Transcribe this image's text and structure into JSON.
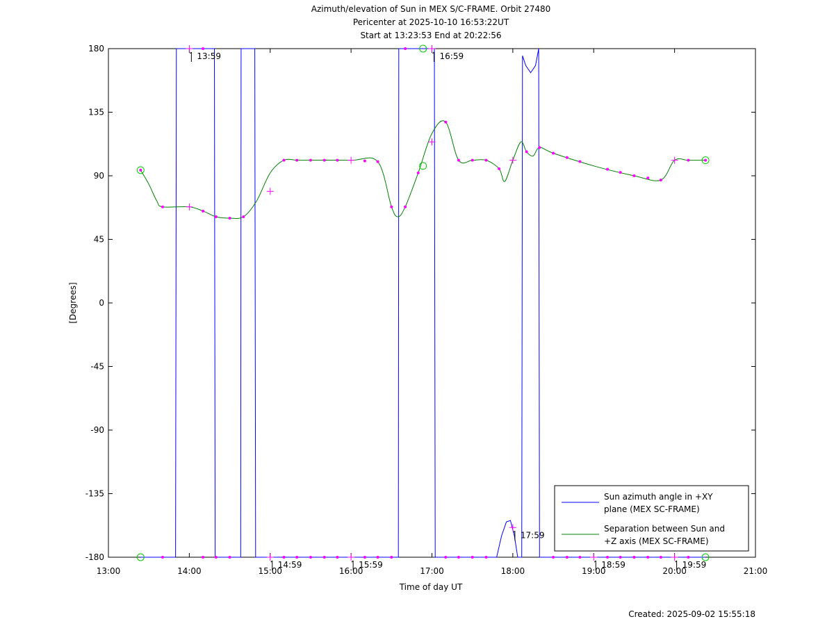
{
  "chart_data": {
    "type": "line",
    "title": [
      "Azimuth/elevation of Sun in MEX S/C-FRAME.  Orbit 27480",
      "Pericenter at 2025-10-10 16:53:22UT",
      "Start at 13:23:53 End at 20:22:56"
    ],
    "xlabel": "Time of day UT",
    "ylabel": "[Degrees]",
    "xlim": [
      13.0,
      21.0
    ],
    "ylim": [
      -180,
      180
    ],
    "x_ticks": [
      {
        "v": 13,
        "label": "13:00"
      },
      {
        "v": 14,
        "label": "14:00"
      },
      {
        "v": 15,
        "label": "15:00"
      },
      {
        "v": 16,
        "label": "16:00"
      },
      {
        "v": 17,
        "label": "17:00"
      },
      {
        "v": 18,
        "label": "18:00"
      },
      {
        "v": 19,
        "label": "19:00"
      },
      {
        "v": 20,
        "label": "20:00"
      },
      {
        "v": 21,
        "label": "21:00"
      }
    ],
    "y_ticks": [
      {
        "v": 180,
        "label": "180"
      },
      {
        "v": 135,
        "label": "135"
      },
      {
        "v": 90,
        "label": "90"
      },
      {
        "v": 45,
        "label": "45"
      },
      {
        "v": 0,
        "label": "0"
      },
      {
        "v": -45,
        "label": "-45"
      },
      {
        "v": -90,
        "label": "-90"
      },
      {
        "v": -135,
        "label": "-135"
      },
      {
        "v": -180,
        "label": "-180"
      }
    ],
    "legend_position": "bottom-right",
    "series": [
      {
        "name": "Sun azimuth angle in +XY plane (MEX SC-FRAME)",
        "legend_lines": [
          "Sun azimuth angle in +XY",
          "plane (MEX SC-FRAME)"
        ],
        "color": "#0000ff",
        "x": [
          13.398,
          13.83,
          13.84,
          14.31,
          14.32,
          14.635,
          14.64,
          14.81,
          14.82,
          16.585,
          16.59,
          17.03,
          17.04,
          17.8,
          17.86,
          17.92,
          17.97,
          18.02,
          18.06,
          18.11,
          18.12,
          18.16,
          18.22,
          18.28,
          18.32,
          18.33,
          20.382
        ],
        "y": [
          -180,
          -180,
          180,
          180,
          -180,
          -180,
          180,
          180,
          -180,
          -180,
          180,
          180,
          -180,
          -180,
          -165,
          -155,
          -154,
          -165,
          -180,
          -180,
          175,
          168,
          163,
          168,
          180,
          -180,
          -180
        ]
      },
      {
        "name": "Separation between Sun and +Z axis (MEX SC-FRAME)",
        "legend_lines": [
          "Separation between Sun and",
          "+Z axis (MEX SC-FRAME)"
        ],
        "color": "#008000",
        "x": [
          13.398,
          13.5,
          13.6,
          13.67,
          14.0,
          14.17,
          14.33,
          14.5,
          14.67,
          14.83,
          15.0,
          15.17,
          15.33,
          15.5,
          16.0,
          16.33,
          16.5,
          16.58,
          16.67,
          16.83,
          17.0,
          17.17,
          17.33,
          17.5,
          17.67,
          17.83,
          17.9,
          18.0,
          18.1,
          18.17,
          18.25,
          18.33,
          18.5,
          19.0,
          19.5,
          19.83,
          20.0,
          20.17,
          20.382
        ],
        "y": [
          94,
          84,
          72,
          68,
          68,
          65,
          61,
          60,
          61,
          72,
          92,
          101,
          101,
          101,
          101,
          100,
          68,
          61,
          68,
          92,
          120,
          128,
          101,
          101,
          101,
          95,
          86,
          101,
          114,
          107,
          104,
          110,
          106,
          97,
          90,
          87,
          101,
          101,
          101
        ]
      }
    ],
    "markers": {
      "color": "#ff00ff",
      "azimuth_dots_x": [
        13.67,
        14.17,
        14.33,
        14.5,
        15.17,
        15.33,
        15.5,
        15.67,
        15.83,
        16.17,
        16.33,
        16.5,
        17.17,
        17.33,
        17.5,
        17.67,
        18.5,
        18.67,
        18.83,
        19.17,
        19.33,
        19.5,
        19.67,
        19.83,
        20.17
      ],
      "azimuth_dots_upper_x": [
        14.17,
        16.67
      ],
      "separation_dots_x": [
        13.398,
        13.67,
        14.17,
        14.33,
        14.5,
        14.67,
        15.17,
        15.33,
        15.5,
        15.67,
        15.83,
        16.17,
        16.33,
        16.5,
        16.67,
        16.83,
        17.17,
        17.33,
        17.5,
        17.67,
        17.83,
        18.17,
        18.33,
        18.5,
        18.67,
        18.83,
        19.17,
        19.33,
        19.5,
        19.67,
        19.83,
        20.17,
        20.382
      ],
      "crosses": [
        {
          "x": 14.0,
          "y": 180
        },
        {
          "x": 17.0,
          "y": 180
        },
        {
          "x": 14.0,
          "y": 68
        },
        {
          "x": 15.0,
          "y": 79
        },
        {
          "x": 16.0,
          "y": 101
        },
        {
          "x": 17.0,
          "y": 114
        },
        {
          "x": 18.0,
          "y": 101
        },
        {
          "x": 20.0,
          "y": 101
        },
        {
          "x": 15.0,
          "y": -180
        },
        {
          "x": 16.0,
          "y": -180
        },
        {
          "x": 18.0,
          "y": -159
        },
        {
          "x": 19.0,
          "y": -180
        },
        {
          "x": 20.0,
          "y": -180
        }
      ],
      "circles": [
        {
          "x": 13.398,
          "y": 94
        },
        {
          "x": 13.398,
          "y": -180
        },
        {
          "x": 16.89,
          "y": 180
        },
        {
          "x": 16.89,
          "y": 97
        },
        {
          "x": 20.382,
          "y": 101
        },
        {
          "x": 20.382,
          "y": -180
        }
      ]
    },
    "annotations": [
      {
        "x": 14.0,
        "y": 180,
        "text": "13:59"
      },
      {
        "x": 17.0,
        "y": 180,
        "text": "16:59"
      },
      {
        "x": 15.0,
        "y": -180,
        "text": "14:59"
      },
      {
        "x": 16.0,
        "y": -180,
        "text": "15:59"
      },
      {
        "x": 18.0,
        "y": -159,
        "text": "17:59"
      },
      {
        "x": 19.0,
        "y": -180,
        "text": "18:59"
      },
      {
        "x": 20.0,
        "y": -180,
        "text": "19:59"
      }
    ]
  },
  "footer": {
    "created": "Created: 2025-09-02 15:55:18"
  }
}
